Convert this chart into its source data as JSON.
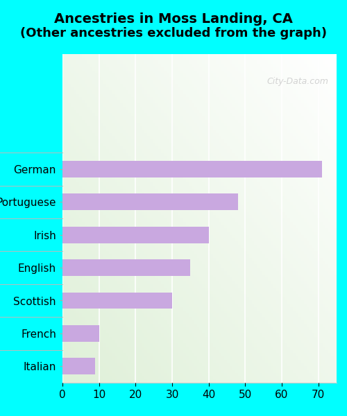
{
  "title_line1": "Ancestries in Moss Landing, CA",
  "title_line2": "(Other ancestries excluded from the graph)",
  "categories": [
    "Italian",
    "French",
    "Scottish",
    "English",
    "Irish",
    "Portuguese",
    "German"
  ],
  "values": [
    9,
    10,
    30,
    35,
    40,
    48,
    71
  ],
  "bar_color": "#c9a8e0",
  "bg_color": "#00ffff",
  "xlim": [
    0,
    75
  ],
  "xticks": [
    0,
    10,
    20,
    30,
    40,
    50,
    60,
    70
  ],
  "watermark": "City-Data.com",
  "title_fontsize": 14,
  "tick_fontsize": 11,
  "label_fontsize": 11,
  "ylim_top": 9.5,
  "ylim_bottom": -0.5
}
